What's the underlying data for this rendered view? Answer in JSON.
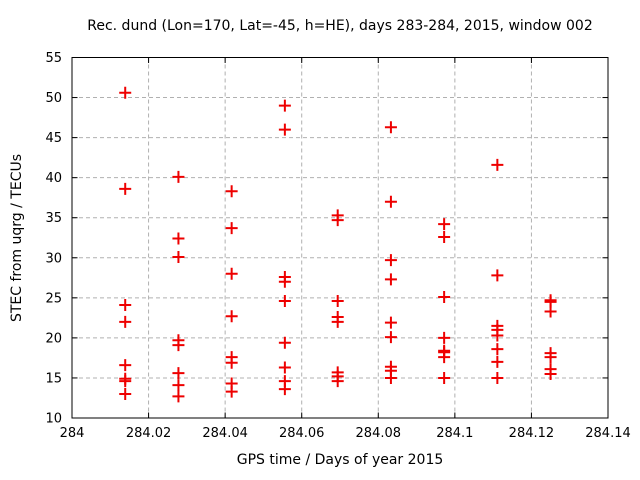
{
  "chart_data": {
    "type": "scatter",
    "title": "Rec. dund (Lon=170, Lat=-45, h=HE), days 283-284, 2015, window 002",
    "xlabel": "GPS time / Days of year 2015",
    "ylabel": "STEC from uqrg / TECUs",
    "xlim": [
      284.0,
      284.14
    ],
    "ylim": [
      10,
      55
    ],
    "xtick_values": [
      284.0,
      284.02,
      284.04,
      284.06,
      284.08,
      284.1,
      284.12,
      284.14
    ],
    "xtick_labels": [
      "284",
      "284.02",
      "284.04",
      "284.06",
      "284.08",
      "284.1",
      "284.12",
      "284.14"
    ],
    "ytick_values": [
      10,
      15,
      20,
      25,
      30,
      35,
      40,
      45,
      50,
      55
    ],
    "ytick_labels": [
      "10",
      "15",
      "20",
      "25",
      "30",
      "35",
      "40",
      "45",
      "50",
      "55"
    ],
    "grid": true,
    "grid_style": "dashed",
    "legend": "none",
    "marker": "plus",
    "colors": {
      "marker": "#ee0000",
      "grid": "#b0b0b0",
      "frame": "#000000",
      "text": "#000000",
      "background": "#ffffff"
    },
    "series": [
      {
        "name": "STEC",
        "clusters": [
          {
            "x": 284.0139,
            "stec": [
              50.6,
              38.6,
              24.1,
              22.0,
              16.6,
              14.9,
              14.6,
              13.0
            ]
          },
          {
            "x": 284.0278,
            "stec": [
              40.1,
              32.4,
              30.1,
              19.7,
              19.1,
              15.6,
              14.1,
              12.7
            ]
          },
          {
            "x": 284.0417,
            "stec": [
              38.3,
              33.7,
              28.0,
              22.7,
              17.6,
              16.9,
              14.3,
              13.3
            ]
          },
          {
            "x": 284.0556,
            "stec": [
              49.0,
              46.0,
              27.6,
              27.0,
              24.6,
              19.4,
              16.3,
              14.6,
              13.6
            ]
          },
          {
            "x": 284.0694,
            "stec": [
              35.3,
              34.7,
              24.6,
              22.6,
              22.0,
              15.7,
              15.2,
              14.6
            ]
          },
          {
            "x": 284.0833,
            "stec": [
              46.3,
              37.0,
              29.7,
              27.3,
              21.9,
              20.1,
              16.4,
              15.9,
              15.0
            ]
          },
          {
            "x": 284.0972,
            "stec": [
              34.2,
              32.6,
              25.1,
              20.0,
              18.4,
              18.2,
              17.6,
              15.0
            ]
          },
          {
            "x": 284.1111,
            "stec": [
              41.6,
              27.8,
              21.5,
              21.0,
              20.3,
              18.6,
              17.0,
              15.0
            ]
          },
          {
            "x": 284.125,
            "stec": [
              24.7,
              24.5,
              23.3,
              18.1,
              17.6,
              16.1,
              15.5
            ]
          }
        ]
      }
    ]
  }
}
